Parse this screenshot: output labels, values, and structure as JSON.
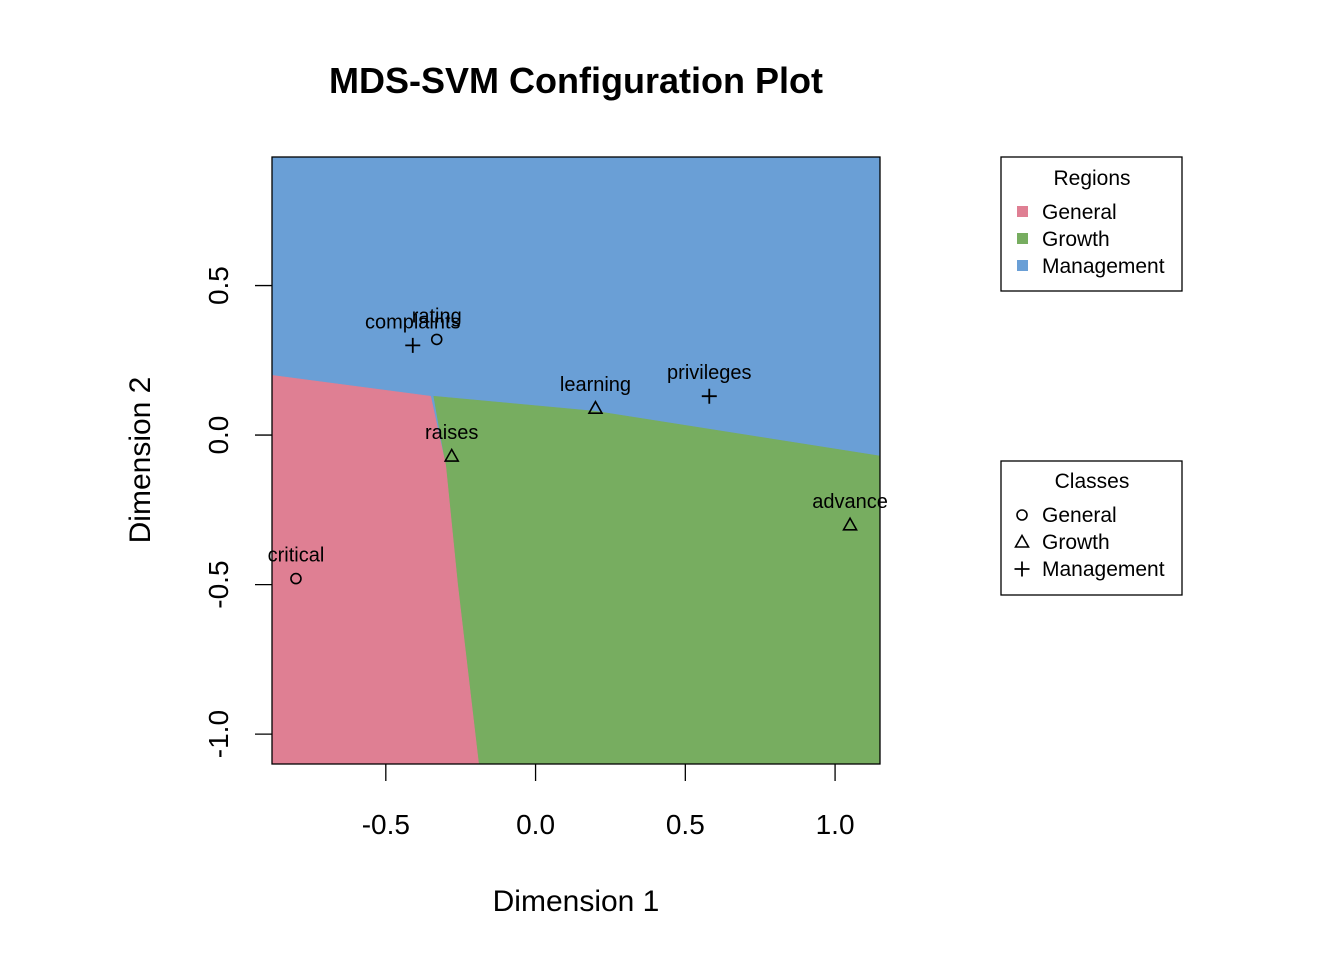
{
  "chart_data": {
    "type": "scatter",
    "title": "MDS-SVM Configuration Plot",
    "xlabel": "Dimension 1",
    "ylabel": "Dimension 2",
    "xlim": [
      -0.88,
      1.15
    ],
    "ylim": [
      -1.1,
      0.93
    ],
    "x_ticks": [
      -0.5,
      0.0,
      0.5,
      1.0
    ],
    "x_tick_labels": [
      "-0.5",
      "0.0",
      "0.5",
      "1.0"
    ],
    "y_ticks": [
      -1.0,
      -0.5,
      0.0,
      0.5
    ],
    "y_tick_labels": [
      "-1.0",
      "-0.5",
      "0.0",
      "0.5"
    ],
    "region_colors": {
      "General": "#DF7F93",
      "Growth": "#77AD60",
      "Management": "#6A9FD6"
    },
    "decision_regions": {
      "management_boundary": [
        [
          -0.88,
          0.2
        ],
        [
          -0.35,
          0.13
        ],
        [
          0.2,
          0.08
        ],
        [
          1.15,
          -0.07
        ]
      ],
      "general_growth_boundary": [
        [
          -0.34,
          0.13
        ],
        [
          -0.3,
          -0.1
        ],
        [
          -0.26,
          -0.5
        ],
        [
          -0.19,
          -1.1
        ]
      ]
    },
    "points": [
      {
        "label": "rating",
        "x": -0.33,
        "y": 0.32,
        "class": "General"
      },
      {
        "label": "complaints",
        "x": -0.41,
        "y": 0.3,
        "class": "Management"
      },
      {
        "label": "learning",
        "x": 0.2,
        "y": 0.09,
        "class": "Growth"
      },
      {
        "label": "privileges",
        "x": 0.58,
        "y": 0.13,
        "class": "Management"
      },
      {
        "label": "raises",
        "x": -0.28,
        "y": -0.07,
        "class": "Growth"
      },
      {
        "label": "advance",
        "x": 1.05,
        "y": -0.3,
        "class": "Growth"
      },
      {
        "label": "critical",
        "x": -0.8,
        "y": -0.48,
        "class": "General"
      }
    ],
    "legend_regions": {
      "title": "Regions",
      "items": [
        "General",
        "Growth",
        "Management"
      ]
    },
    "legend_classes": {
      "title": "Classes",
      "items": [
        "General",
        "Growth",
        "Management"
      ],
      "symbols": [
        "circle",
        "triangle",
        "plus"
      ]
    },
    "legend_placement": "right",
    "grid": false
  }
}
